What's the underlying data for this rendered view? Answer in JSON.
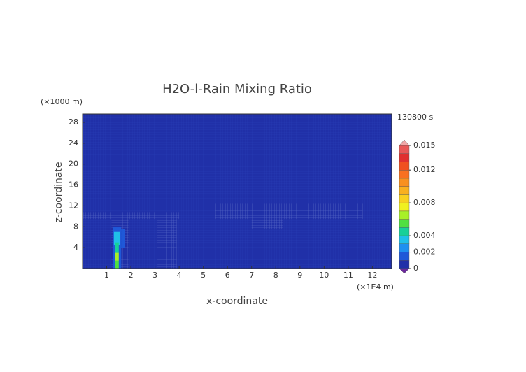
{
  "chart_data": {
    "type": "contour",
    "title": "H2O-l-Rain Mixing Ratio",
    "y_unit": "(×1000 m)",
    "x_unit": "(×1E4 m)",
    "time_label": "130800 s",
    "xlabel": "x-coordinate",
    "ylabel": "z-coordinate",
    "xlim": [
      0,
      12.8
    ],
    "xticks": [
      1,
      2,
      3,
      4,
      5,
      6,
      7,
      8,
      9,
      10,
      11,
      12
    ],
    "ylim": [
      0,
      29.6
    ],
    "yticks": [
      4,
      8,
      12,
      16,
      20,
      24,
      28
    ],
    "levels": [
      0,
      0.001,
      0.002,
      0.003,
      0.004,
      0.005,
      0.006,
      0.007,
      0.008,
      0.009,
      0.01,
      0.011,
      0.012,
      0.013,
      0.014,
      0.015
    ],
    "colors": [
      "#2030a8",
      "#1f58d8",
      "#1f90f0",
      "#20c0e8",
      "#18d098",
      "#50e040",
      "#a8f028",
      "#f0f020",
      "#f8d020",
      "#f8b020",
      "#f89020",
      "#f87020",
      "#f05020",
      "#e03030",
      "#e85858"
    ],
    "under_color": "#6a2a9a",
    "over_color": "#f0a8a8",
    "colorbar_ticks": [
      0,
      0.002,
      0.004,
      0.008,
      0.012,
      0.015
    ],
    "cells": [
      {
        "x": [
          0,
          4.0
        ],
        "z": [
          9.5,
          10.8
        ],
        "value": 0.0003
      },
      {
        "x": [
          3.1,
          3.9
        ],
        "z": [
          0,
          9.5
        ],
        "value": 0.0003
      },
      {
        "x": [
          1.2,
          1.9
        ],
        "z": [
          0,
          9.5
        ],
        "value": 0.0003
      },
      {
        "x": [
          5.5,
          11.6
        ],
        "z": [
          9.5,
          12.4
        ],
        "value": 0.0003
      },
      {
        "x": [
          7.0,
          8.3
        ],
        "z": [
          7.5,
          9.5
        ],
        "value": 0.0003
      },
      {
        "x": [
          1.25,
          1.6
        ],
        "z": [
          0,
          8.0
        ],
        "value": 0.0015
      },
      {
        "x": [
          1.6,
          1.75
        ],
        "z": [
          4.0,
          7.5
        ],
        "value": 0.0015
      },
      {
        "x": [
          1.3,
          1.55
        ],
        "z": [
          4.5,
          7.0
        ],
        "value": 0.0035
      },
      {
        "x": [
          1.35,
          1.5
        ],
        "z": [
          3.0,
          5.0
        ],
        "value": 0.0045
      },
      {
        "x": [
          1.35,
          1.5
        ],
        "z": [
          0,
          1.5
        ],
        "value": 0.0055
      },
      {
        "x": [
          1.35,
          1.5
        ],
        "z": [
          1.5,
          3.0
        ],
        "value": 0.0068
      }
    ]
  }
}
